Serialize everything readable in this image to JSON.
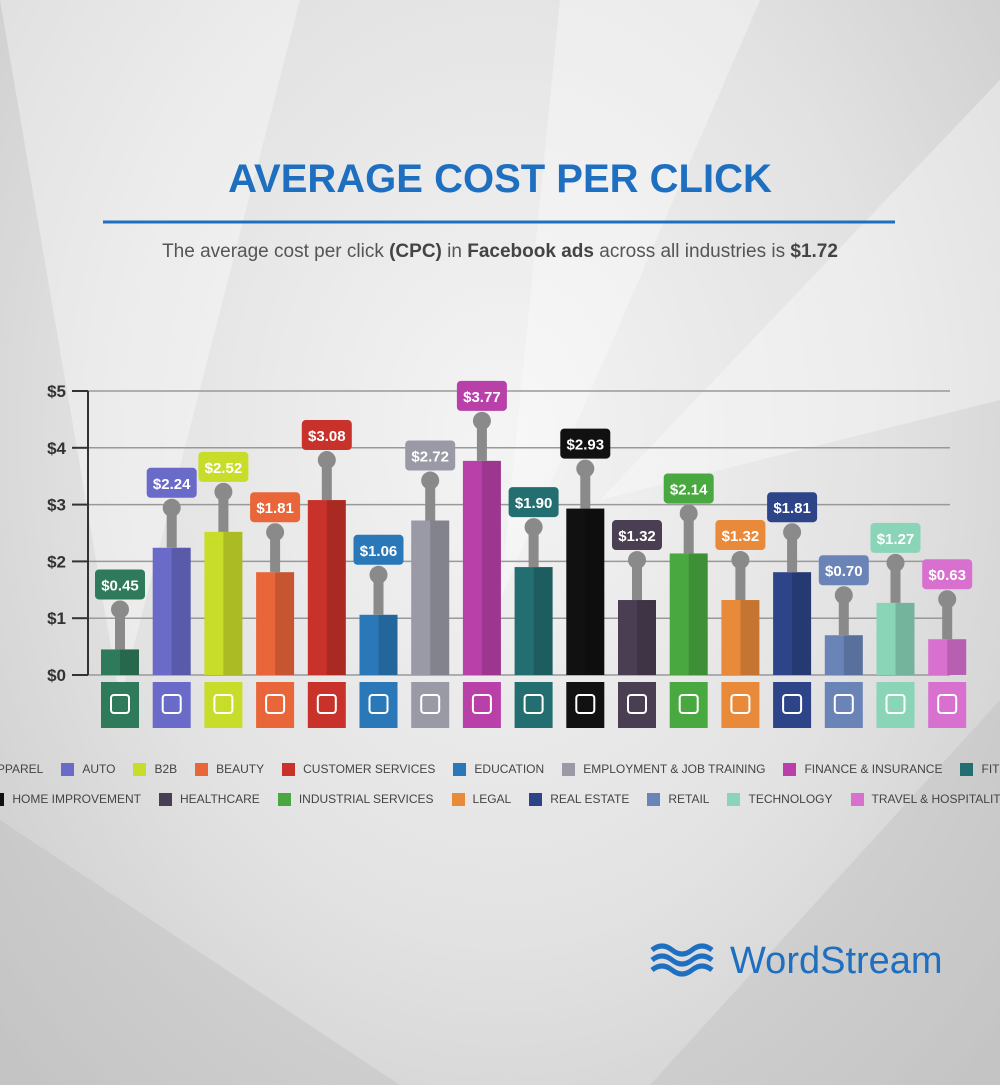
{
  "chart_data": {
    "type": "bar",
    "title": "AVERAGE COST PER CLICK",
    "subtitle": [
      "The average cost per click ",
      "(CPC)",
      " in ",
      "Facebook ads",
      " across all industries is ",
      "$1.72"
    ],
    "categories": [
      "APPAREL",
      "AUTO",
      "B2B",
      "BEAUTY",
      "CUSTOMER SERVICES",
      "EDUCATION",
      "EMPLOYMENT & JOB TRAINING",
      "FINANCE & INSURANCE",
      "FITNESS",
      "HOME IMPROVEMENT",
      "HEALTHCARE",
      "INDUSTRIAL SERVICES",
      "LEGAL",
      "REAL ESTATE",
      "RETAIL",
      "TECHNOLOGY",
      "TRAVEL & HOSPITALITY"
    ],
    "values": [
      0.45,
      2.24,
      2.52,
      1.81,
      3.08,
      1.06,
      2.72,
      3.77,
      1.9,
      2.93,
      1.32,
      2.14,
      1.32,
      1.81,
      0.7,
      1.27,
      0.63
    ],
    "value_labels": [
      "$0.45",
      "$2.24",
      "$2.52",
      "$1.81",
      "$3.08",
      "$1.06",
      "$2.72",
      "$3.77",
      "$1.90",
      "$2.93",
      "$1.32",
      "$2.14",
      "$1.32",
      "$1.81",
      "$0.70",
      "$1.27",
      "$0.63"
    ],
    "colors": [
      "#2e7a5a",
      "#6a6ac8",
      "#c8dc2a",
      "#e8663a",
      "#c8322a",
      "#2a78b8",
      "#9a9aa6",
      "#b840a8",
      "#236e70",
      "#111111",
      "#4a3e52",
      "#4aa840",
      "#e88a3a",
      "#2e4488",
      "#6a84b8",
      "#8ad4b8",
      "#d870d0"
    ],
    "ylim": [
      0,
      5
    ],
    "yticks": [
      {
        "value": 0,
        "label": "$0"
      },
      {
        "value": 1,
        "label": "$1"
      },
      {
        "value": 2,
        "label": "$2"
      },
      {
        "value": 3,
        "label": "$3"
      },
      {
        "value": 4,
        "label": "$4"
      },
      {
        "value": 5,
        "label": "$5"
      }
    ],
    "grid": true
  },
  "brand": "WordStream"
}
